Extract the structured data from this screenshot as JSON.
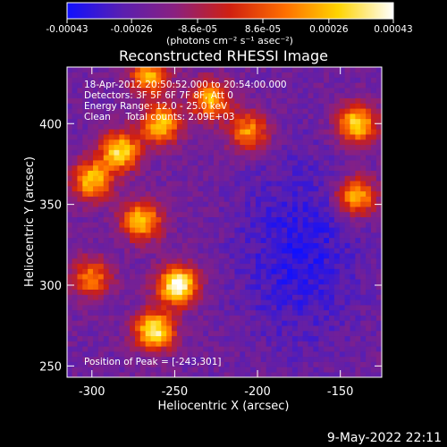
{
  "chart_data": {
    "type": "heatmap",
    "title": "Reconstructed RHESSI Image",
    "xlabel": "Heliocentric X (arcsec)",
    "ylabel": "Heliocentric Y (arcsec)",
    "xlim": [
      -315,
      -125
    ],
    "ylim": [
      243,
      435
    ],
    "x_ticks": [
      -300,
      -250,
      -200,
      -150
    ],
    "y_ticks": [
      250,
      300,
      350,
      400
    ],
    "colorbar": {
      "range": [
        -0.00043,
        0.00043
      ],
      "ticks": [
        -0.00043,
        -0.00026,
        -8.6e-05,
        8.6e-05,
        0.00026,
        0.00043
      ],
      "tick_labels": [
        "-0.00043",
        "-0.00026",
        "-8.6e-05",
        "8.6e-05",
        "0.00026",
        "0.00043"
      ],
      "unit_label": "(photons cm⁻² s⁻¹ asec⁻²)",
      "colors": [
        "#1010ff",
        "#5a1fb0",
        "#8a2080",
        "#d02010",
        "#ff7000",
        "#ffd400",
        "#ffffff"
      ]
    },
    "info_lines": [
      "18-Apr-2012 20:50:52.000 to 20:54:00.000",
      "Detectors: 3F 5F 6F 7F 8F, Att 0",
      "Energy Range: 12.0 - 25.0 keV",
      "Clean     Total counts: 2.09E+03"
    ],
    "peak_label": "Position of Peak = [-243,301]",
    "bright_sources": [
      {
        "x": -248,
        "y": 300,
        "intensity": 0.00043
      },
      {
        "x": -262,
        "y": 272,
        "intensity": 0.00035
      },
      {
        "x": -283,
        "y": 383,
        "intensity": 0.0003
      },
      {
        "x": -300,
        "y": 365,
        "intensity": 0.00025
      },
      {
        "x": -258,
        "y": 400,
        "intensity": 0.00026
      },
      {
        "x": -228,
        "y": 415,
        "intensity": 0.00022
      },
      {
        "x": -205,
        "y": 395,
        "intensity": 0.00018
      },
      {
        "x": -140,
        "y": 400,
        "intensity": 0.0003
      },
      {
        "x": -140,
        "y": 355,
        "intensity": 0.00025
      },
      {
        "x": -270,
        "y": 340,
        "intensity": 0.00026
      },
      {
        "x": -300,
        "y": 305,
        "intensity": 0.00014
      },
      {
        "x": -265,
        "y": 430,
        "intensity": 0.0002
      }
    ]
  },
  "footer_timestamp": "9-May-2022 22:11"
}
